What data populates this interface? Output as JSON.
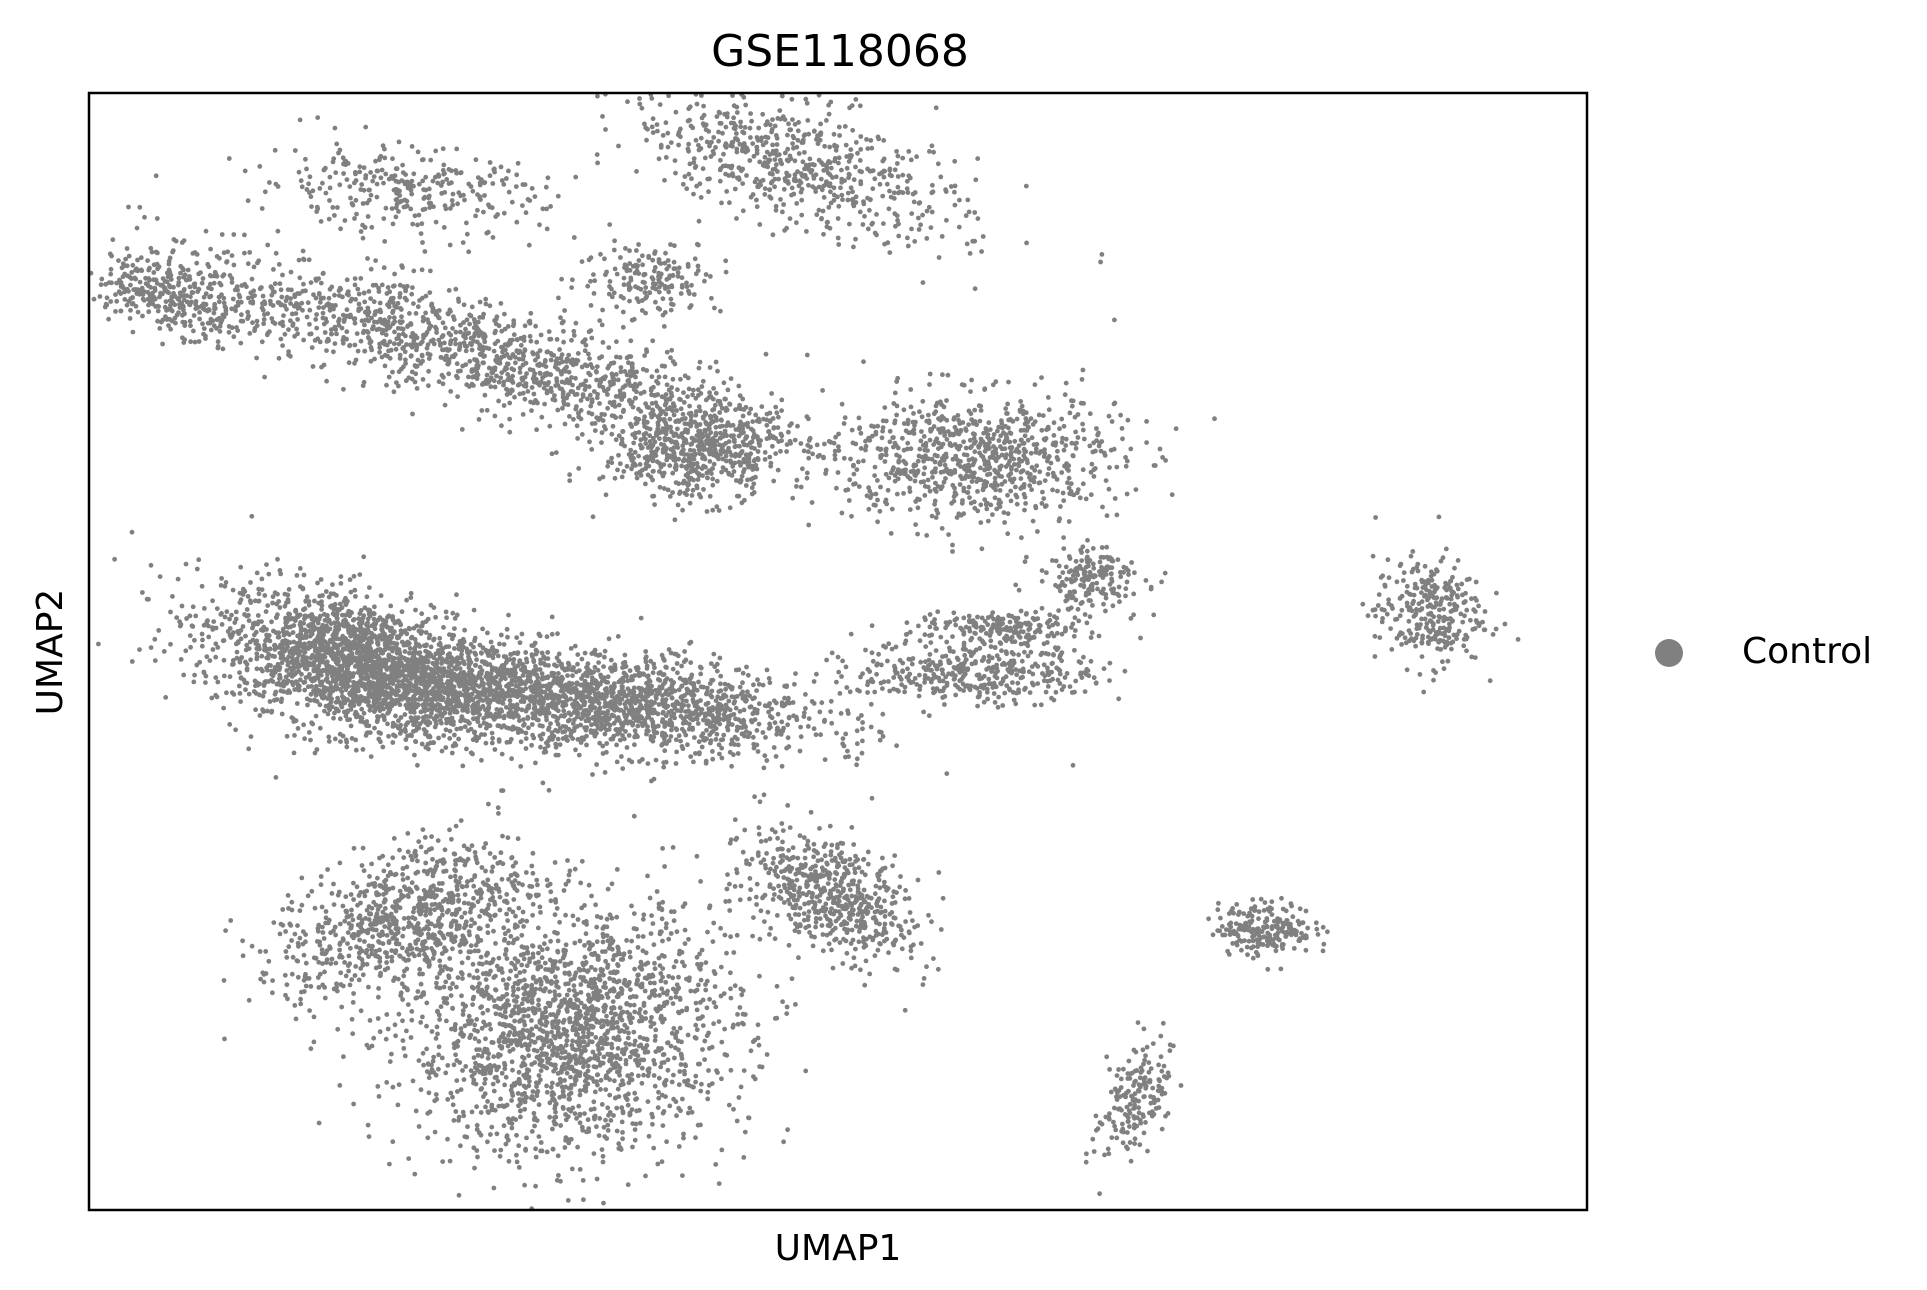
{
  "chart_data": {
    "type": "scatter",
    "title": "GSE118068",
    "xlabel": "UMAP1",
    "ylabel": "UMAP2",
    "xlim": [
      -10,
      17.5
    ],
    "ylim": [
      -10,
      13
    ],
    "xticks": [],
    "yticks": [],
    "grid": false,
    "legend": {
      "placement": "right",
      "entries": [
        {
          "label": "Control",
          "color": "#808080"
        }
      ]
    },
    "point_color": "#808080",
    "series": [
      {
        "name": "Control",
        "approximate_clusters": [
          {
            "cx": -5.0,
            "cy": 1.2,
            "sx": 2.6,
            "sy": 1.2,
            "tilt": -0.3,
            "n": 2200
          },
          {
            "cx": -0.8,
            "cy": 0.5,
            "sx": 3.8,
            "sy": 0.9,
            "tilt": -0.1,
            "n": 1900
          },
          {
            "cx": -1.2,
            "cy": -6.3,
            "sx": 2.8,
            "sy": 2.3,
            "tilt": 0.15,
            "n": 2000
          },
          {
            "cx": -4.2,
            "cy": -4.0,
            "sx": 2.2,
            "sy": 1.2,
            "tilt": 0.4,
            "n": 800
          },
          {
            "cx": -3.0,
            "cy": 7.7,
            "sx": 6.0,
            "sy": 0.95,
            "tilt": -0.28,
            "n": 1500
          },
          {
            "cx": 1.1,
            "cy": 5.6,
            "sx": 1.5,
            "sy": 0.9,
            "tilt": 0.0,
            "n": 550
          },
          {
            "cx": -8.5,
            "cy": 8.8,
            "sx": 1.3,
            "sy": 0.6,
            "tilt": -0.3,
            "n": 260
          },
          {
            "cx": -4.3,
            "cy": 11.0,
            "sx": 2.4,
            "sy": 0.8,
            "tilt": -0.1,
            "n": 300
          },
          {
            "cx": 0.3,
            "cy": 9.2,
            "sx": 1.2,
            "sy": 0.7,
            "tilt": 0.0,
            "n": 180
          },
          {
            "cx": 3.0,
            "cy": 11.5,
            "sx": 3.0,
            "sy": 1.1,
            "tilt": -0.35,
            "n": 650
          },
          {
            "cx": 6.3,
            "cy": 5.5,
            "sx": 2.4,
            "sy": 1.2,
            "tilt": 0.0,
            "n": 800
          },
          {
            "cx": 8.4,
            "cy": 3.0,
            "sx": 0.9,
            "sy": 0.6,
            "tilt": 0.0,
            "n": 180
          },
          {
            "cx": 6.3,
            "cy": 1.1,
            "sx": 2.0,
            "sy": 0.6,
            "tilt": 0.0,
            "n": 400
          },
          {
            "cx": 6.8,
            "cy": 2.0,
            "sx": 1.5,
            "sy": 0.3,
            "tilt": 0.0,
            "n": 180
          },
          {
            "cx": 3.6,
            "cy": -3.5,
            "sx": 1.6,
            "sy": 1.0,
            "tilt": -0.6,
            "n": 600
          },
          {
            "cx": 14.6,
            "cy": 2.3,
            "sx": 0.9,
            "sy": 1.0,
            "tilt": 0.0,
            "n": 300
          },
          {
            "cx": 11.6,
            "cy": -4.2,
            "sx": 0.8,
            "sy": 0.5,
            "tilt": 0.0,
            "n": 220
          },
          {
            "cx": 9.2,
            "cy": -7.7,
            "sx": 0.5,
            "sy": 1.2,
            "tilt": -0.4,
            "n": 180
          }
        ]
      }
    ]
  }
}
